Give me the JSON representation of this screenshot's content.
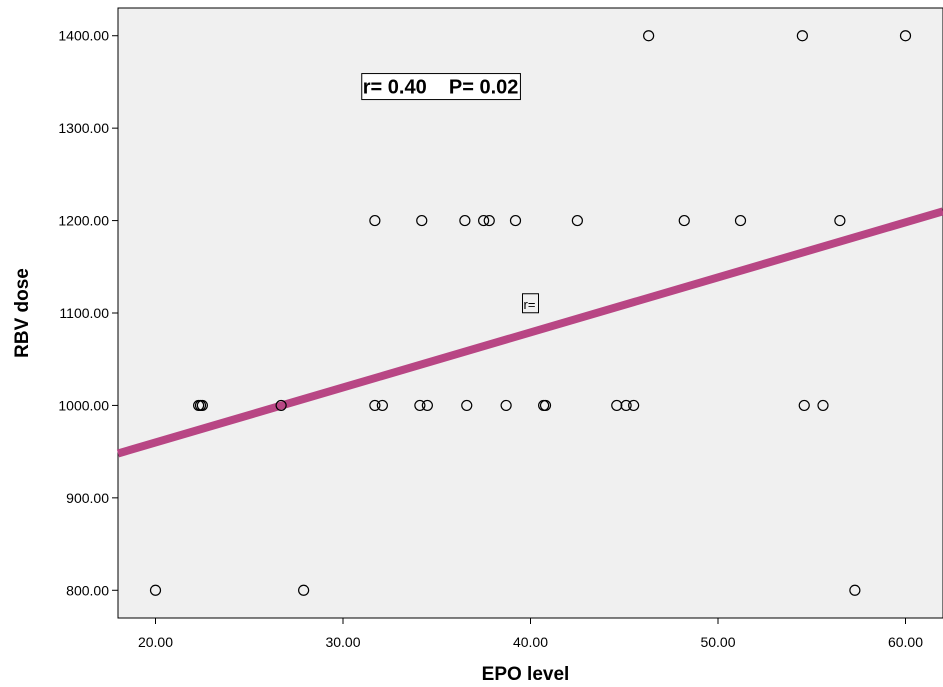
{
  "chart_data": {
    "type": "scatter",
    "xlabel": "EPO level",
    "ylabel": "RBV dose",
    "xlim": [
      18,
      62
    ],
    "ylim": [
      770,
      1430
    ],
    "x_ticks": [
      20,
      30,
      40,
      50,
      60
    ],
    "y_ticks": [
      800,
      900,
      1000,
      1100,
      1200,
      1300,
      1400
    ],
    "x_tick_labels": [
      "20.00",
      "30.00",
      "40.00",
      "50.00",
      "60.00"
    ],
    "y_tick_labels": [
      "800.00",
      "900.00",
      "1000.00",
      "1100.00",
      "1200.00",
      "1300.00",
      "1400.00"
    ],
    "grid": false,
    "points": [
      {
        "x": 20.0,
        "y": 800
      },
      {
        "x": 27.9,
        "y": 800
      },
      {
        "x": 57.3,
        "y": 800
      },
      {
        "x": 22.3,
        "y": 1000
      },
      {
        "x": 22.4,
        "y": 1000
      },
      {
        "x": 22.5,
        "y": 1000
      },
      {
        "x": 26.7,
        "y": 1000
      },
      {
        "x": 31.7,
        "y": 1000
      },
      {
        "x": 32.1,
        "y": 1000
      },
      {
        "x": 34.1,
        "y": 1000
      },
      {
        "x": 34.5,
        "y": 1000
      },
      {
        "x": 36.6,
        "y": 1000
      },
      {
        "x": 38.7,
        "y": 1000
      },
      {
        "x": 40.7,
        "y": 1000
      },
      {
        "x": 40.8,
        "y": 1000
      },
      {
        "x": 44.6,
        "y": 1000
      },
      {
        "x": 45.1,
        "y": 1000
      },
      {
        "x": 45.5,
        "y": 1000
      },
      {
        "x": 54.6,
        "y": 1000
      },
      {
        "x": 55.6,
        "y": 1000
      },
      {
        "x": 31.7,
        "y": 1200
      },
      {
        "x": 34.2,
        "y": 1200
      },
      {
        "x": 36.5,
        "y": 1200
      },
      {
        "x": 37.5,
        "y": 1200
      },
      {
        "x": 37.8,
        "y": 1200
      },
      {
        "x": 39.2,
        "y": 1200
      },
      {
        "x": 42.5,
        "y": 1200
      },
      {
        "x": 48.2,
        "y": 1200
      },
      {
        "x": 51.2,
        "y": 1200
      },
      {
        "x": 56.5,
        "y": 1200
      },
      {
        "x": 46.3,
        "y": 1400
      },
      {
        "x": 54.5,
        "y": 1400
      },
      {
        "x": 60.0,
        "y": 1400
      }
    ],
    "fit_line": {
      "x": [
        18,
        62
      ],
      "y": [
        948,
        1210
      ],
      "color": "#b84684"
    },
    "annotation": "r= 0.40    P= 0.02",
    "mini_label": "r=",
    "colors": {
      "plot_background": "#f0f0f0",
      "fit_line": "#b84684",
      "marker_edge": "#000000"
    }
  }
}
